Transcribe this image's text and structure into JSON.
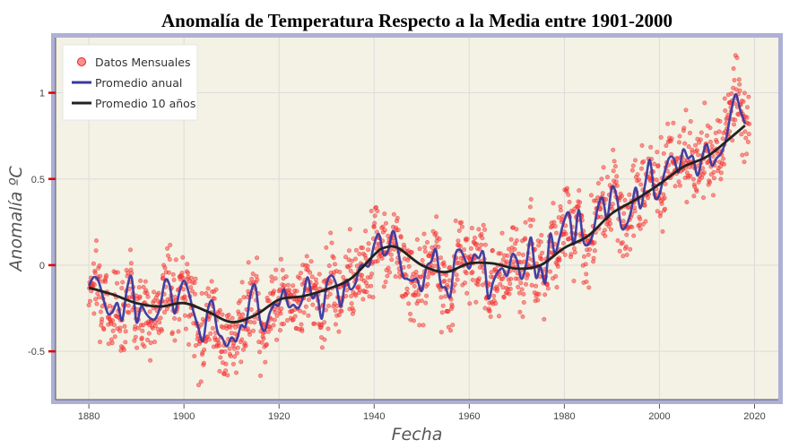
{
  "chart_data": {
    "type": "line",
    "title": "Anomalía de Temperatura Respecto a la Media entre 1901-2000",
    "xlabel": "Fecha",
    "ylabel": "Anomalía ºC",
    "xlim": [
      1873,
      2025
    ],
    "ylim": [
      -0.78,
      1.32
    ],
    "x_ticks": [
      1880,
      1900,
      1920,
      1940,
      1960,
      1980,
      2000,
      2020
    ],
    "y_ticks": [
      -0.5,
      0,
      0.5,
      1
    ],
    "y_tick_labels": [
      "-0.5",
      "0",
      "0.5",
      "1"
    ],
    "grid": true,
    "legend_position": "top-left",
    "colors": {
      "monthly": "#ff2a2a",
      "annual": "#3a37a0",
      "decadal": "#222222",
      "plot_bg": "#f3f2e4",
      "frame": "#aeb0d6"
    },
    "series": [
      {
        "name": "Datos Mensuales",
        "kind": "scatter",
        "note": "monthly points scattered around the annual curve, 1880–2018",
        "noise_sd": 0.11
      },
      {
        "name": "Promedio anual",
        "kind": "line",
        "x": [
          1880,
          1881,
          1882,
          1883,
          1884,
          1885,
          1886,
          1887,
          1888,
          1889,
          1890,
          1891,
          1892,
          1893,
          1894,
          1895,
          1896,
          1897,
          1898,
          1899,
          1900,
          1901,
          1902,
          1903,
          1904,
          1905,
          1906,
          1907,
          1908,
          1909,
          1910,
          1911,
          1912,
          1913,
          1914,
          1915,
          1916,
          1917,
          1918,
          1919,
          1920,
          1921,
          1922,
          1923,
          1924,
          1925,
          1926,
          1927,
          1928,
          1929,
          1930,
          1931,
          1932,
          1933,
          1934,
          1935,
          1936,
          1937,
          1938,
          1939,
          1940,
          1941,
          1942,
          1943,
          1944,
          1945,
          1946,
          1947,
          1948,
          1949,
          1950,
          1951,
          1952,
          1953,
          1954,
          1955,
          1956,
          1957,
          1958,
          1959,
          1960,
          1961,
          1962,
          1963,
          1964,
          1965,
          1966,
          1967,
          1968,
          1969,
          1970,
          1971,
          1972,
          1973,
          1974,
          1975,
          1976,
          1977,
          1978,
          1979,
          1980,
          1981,
          1982,
          1983,
          1984,
          1985,
          1986,
          1987,
          1988,
          1989,
          1990,
          1991,
          1992,
          1993,
          1994,
          1995,
          1996,
          1997,
          1998,
          1999,
          2000,
          2001,
          2002,
          2003,
          2004,
          2005,
          2006,
          2007,
          2008,
          2009,
          2010,
          2011,
          2012,
          2013,
          2014,
          2015,
          2016,
          2017,
          2018
        ],
        "values": [
          -0.12,
          -0.07,
          -0.09,
          -0.19,
          -0.28,
          -0.27,
          -0.22,
          -0.32,
          -0.14,
          -0.07,
          -0.33,
          -0.24,
          -0.28,
          -0.31,
          -0.31,
          -0.24,
          -0.09,
          -0.12,
          -0.28,
          -0.16,
          -0.09,
          -0.16,
          -0.27,
          -0.36,
          -0.44,
          -0.26,
          -0.21,
          -0.38,
          -0.42,
          -0.47,
          -0.42,
          -0.44,
          -0.35,
          -0.35,
          -0.17,
          -0.12,
          -0.32,
          -0.38,
          -0.28,
          -0.23,
          -0.23,
          -0.14,
          -0.24,
          -0.23,
          -0.25,
          -0.19,
          -0.07,
          -0.19,
          -0.17,
          -0.31,
          -0.11,
          -0.06,
          -0.11,
          -0.24,
          -0.09,
          -0.14,
          -0.11,
          -0.01,
          0.0,
          0.0,
          0.12,
          0.18,
          0.06,
          0.09,
          0.2,
          0.09,
          -0.06,
          -0.08,
          -0.09,
          -0.08,
          -0.15,
          -0.01,
          0.02,
          0.09,
          -0.11,
          -0.13,
          -0.18,
          0.05,
          0.09,
          0.04,
          -0.02,
          0.06,
          0.04,
          0.07,
          -0.19,
          -0.1,
          -0.04,
          -0.02,
          -0.06,
          0.06,
          0.03,
          -0.08,
          0.01,
          0.16,
          -0.07,
          -0.01,
          -0.1,
          0.18,
          0.07,
          0.16,
          0.26,
          0.3,
          0.12,
          0.32,
          0.14,
          0.12,
          0.18,
          0.33,
          0.39,
          0.27,
          0.45,
          0.4,
          0.22,
          0.23,
          0.31,
          0.45,
          0.33,
          0.47,
          0.61,
          0.4,
          0.41,
          0.53,
          0.62,
          0.62,
          0.54,
          0.67,
          0.62,
          0.63,
          0.52,
          0.63,
          0.7,
          0.58,
          0.62,
          0.65,
          0.73,
          0.88,
          0.99,
          0.9,
          0.82
        ]
      },
      {
        "name": "Promedio 10 años",
        "kind": "line",
        "x": [
          1880,
          1885,
          1890,
          1895,
          1900,
          1905,
          1910,
          1915,
          1920,
          1925,
          1930,
          1935,
          1940,
          1942,
          1945,
          1950,
          1955,
          1960,
          1965,
          1970,
          1975,
          1980,
          1985,
          1990,
          1995,
          2000,
          2005,
          2010,
          2015,
          2018
        ],
        "values": [
          -0.13,
          -0.17,
          -0.22,
          -0.24,
          -0.22,
          -0.27,
          -0.33,
          -0.29,
          -0.2,
          -0.18,
          -0.14,
          -0.08,
          0.06,
          0.1,
          0.1,
          0.0,
          -0.04,
          0.01,
          0.01,
          -0.02,
          0.0,
          0.1,
          0.17,
          0.3,
          0.38,
          0.47,
          0.57,
          0.63,
          0.74,
          0.81
        ]
      }
    ]
  }
}
